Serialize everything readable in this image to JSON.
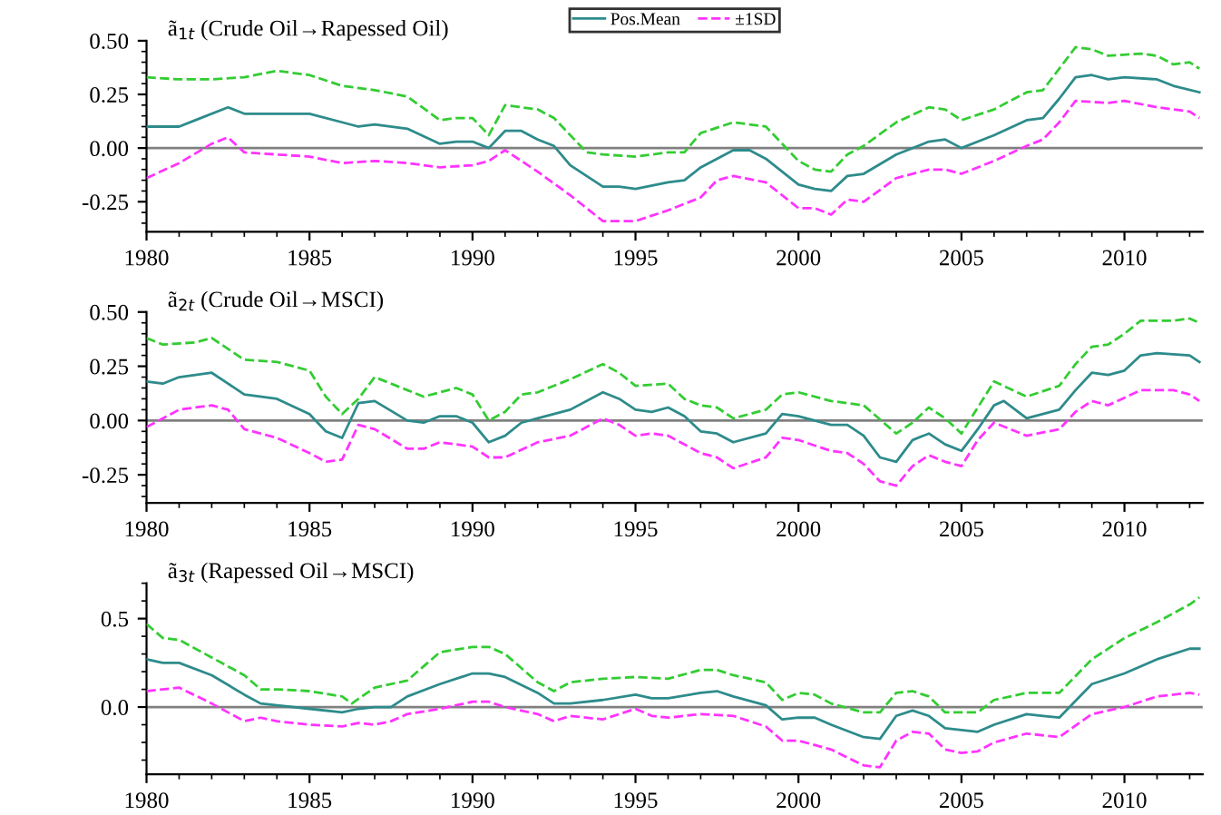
{
  "chart_data": [
    {
      "type": "line",
      "title": "ã$_{1t}$ (Crude Oil→Rapessed Oil)",
      "xlim": [
        1980,
        2012.4
      ],
      "xticks": [
        1980,
        1985,
        1990,
        1995,
        2000,
        2005,
        2010
      ],
      "ylim": [
        -0.39,
        0.5
      ],
      "yticks": [
        {
          "value": 0.5,
          "label": "0.50"
        },
        {
          "value": 0.25,
          "label": "0.25"
        },
        {
          "value": 0,
          "label": "0.00"
        },
        {
          "value": -0.25,
          "label": "-0.25"
        }
      ],
      "legend": "top",
      "grid": false,
      "ref_lines": [
        {
          "axis": "y",
          "value": 0,
          "color": "#808080",
          "line_style": "solid"
        }
      ],
      "series": [
        {
          "name": "Pos.Mean",
          "color": "#2e8b8b",
          "line_style": "solid",
          "x": [
            1980,
            1981,
            1981.5,
            1982.5,
            1983,
            1984,
            1985,
            1986,
            1986.5,
            1987,
            1988,
            1989,
            1989.5,
            1990,
            1990.5,
            1991,
            1991.5,
            1992,
            1992.5,
            1993,
            1994,
            1994.5,
            1995,
            1996,
            1996.5,
            1997,
            1998,
            1998.5,
            1999,
            2000,
            2000.5,
            2001,
            2001.5,
            2002,
            2003,
            2004,
            2004.5,
            2005,
            2005.5,
            2006,
            2007,
            2007.5,
            2008,
            2008.5,
            2009,
            2009.5,
            2010,
            2011,
            2011.5,
            2012.3
          ],
          "values": [
            0.1,
            0.1,
            0.13,
            0.19,
            0.16,
            0.16,
            0.16,
            0.12,
            0.1,
            0.11,
            0.09,
            0.02,
            0.03,
            0.03,
            0.0,
            0.08,
            0.08,
            0.04,
            0.01,
            -0.08,
            -0.18,
            -0.18,
            -0.19,
            -0.16,
            -0.15,
            -0.09,
            -0.01,
            -0.01,
            -0.05,
            -0.17,
            -0.19,
            -0.2,
            -0.13,
            -0.12,
            -0.03,
            0.03,
            0.04,
            0.0,
            0.03,
            0.06,
            0.13,
            0.14,
            0.23,
            0.33,
            0.34,
            0.32,
            0.33,
            0.32,
            0.29,
            0.26
          ]
        },
        {
          "name": "±1SD",
          "color": "#ff33ff",
          "line_style": "dashed",
          "x": [
            1980,
            1981,
            1982,
            1982.5,
            1983,
            1984,
            1985,
            1986,
            1987,
            1988,
            1989,
            1990,
            1990.5,
            1991,
            1992,
            1993,
            1994,
            1995,
            1996,
            1997,
            1997.5,
            1998,
            1999,
            2000,
            2000.5,
            2001,
            2001.5,
            2002,
            2003,
            2004,
            2004.5,
            2005,
            2006,
            2007,
            2007.5,
            2008,
            2008.5,
            2009.5,
            2010,
            2011,
            2012,
            2012.3
          ],
          "values": [
            -0.14,
            -0.07,
            0.02,
            0.05,
            -0.02,
            -0.03,
            -0.04,
            -0.07,
            -0.06,
            -0.07,
            -0.09,
            -0.08,
            -0.06,
            -0.01,
            -0.11,
            -0.22,
            -0.34,
            -0.34,
            -0.29,
            -0.23,
            -0.15,
            -0.13,
            -0.16,
            -0.28,
            -0.28,
            -0.31,
            -0.24,
            -0.25,
            -0.14,
            -0.1,
            -0.1,
            -0.12,
            -0.06,
            0.01,
            0.04,
            0.12,
            0.22,
            0.21,
            0.22,
            0.19,
            0.17,
            0.14
          ]
        },
        {
          "color": "#33cc33",
          "line_style": "dashed",
          "x": [
            1980,
            1981,
            1982,
            1983,
            1984,
            1985,
            1986,
            1987,
            1988,
            1989,
            1989.5,
            1990,
            1990.5,
            1991,
            1992,
            1992.5,
            1993.5,
            1994,
            1995,
            1996,
            1996.5,
            1997,
            1998,
            1999,
            2000,
            2000.5,
            2001,
            2001.5,
            2002,
            2003,
            2004,
            2004.5,
            2005,
            2006,
            2007,
            2007.5,
            2008,
            2008.5,
            2009,
            2009.5,
            2010.5,
            2011,
            2011.5,
            2012,
            2012.3
          ],
          "values": [
            0.33,
            0.32,
            0.32,
            0.33,
            0.36,
            0.34,
            0.29,
            0.27,
            0.24,
            0.13,
            0.14,
            0.14,
            0.06,
            0.2,
            0.18,
            0.14,
            -0.02,
            -0.03,
            -0.04,
            -0.02,
            -0.02,
            0.07,
            0.12,
            0.1,
            -0.06,
            -0.1,
            -0.11,
            -0.03,
            0.01,
            0.12,
            0.19,
            0.18,
            0.13,
            0.18,
            0.26,
            0.27,
            0.37,
            0.47,
            0.46,
            0.43,
            0.44,
            0.43,
            0.39,
            0.4,
            0.37
          ]
        }
      ]
    },
    {
      "type": "line",
      "title": "ã$_{2t}$ (Crude Oil→MSCI)",
      "xlim": [
        1980,
        2012.4
      ],
      "xticks": [
        1980,
        1985,
        1990,
        1995,
        2000,
        2005,
        2010
      ],
      "ylim": [
        -0.38,
        0.5
      ],
      "yticks": [
        {
          "value": 0.5,
          "label": "0.50"
        },
        {
          "value": 0.25,
          "label": "0.25"
        },
        {
          "value": 0,
          "label": "0.00"
        },
        {
          "value": -0.25,
          "label": "-0.25"
        }
      ],
      "grid": false,
      "ref_lines": [
        {
          "axis": "y",
          "value": 0,
          "color": "#808080",
          "line_style": "solid"
        }
      ],
      "series": [
        {
          "color": "#2e8b8b",
          "line_style": "solid",
          "x": [
            1980,
            1980.5,
            1981,
            1982,
            1982.5,
            1983,
            1984,
            1985,
            1985.5,
            1986,
            1986.5,
            1987,
            1988,
            1988.5,
            1989,
            1989.5,
            1990,
            1990.5,
            1991,
            1991.5,
            1992,
            1993,
            1994,
            1994.5,
            1995,
            1995.5,
            1996,
            1996.5,
            1997,
            1997.5,
            1998,
            1999,
            1999.5,
            2000,
            2001,
            2001.5,
            2002,
            2002.5,
            2003,
            2003.5,
            2004,
            2004.5,
            2005,
            2005.5,
            2006,
            2006.3,
            2007,
            2008,
            2008.5,
            2009,
            2009.5,
            2010,
            2010.5,
            2011,
            2012,
            2012.3
          ],
          "values": [
            0.18,
            0.17,
            0.2,
            0.22,
            0.17,
            0.12,
            0.1,
            0.03,
            -0.05,
            -0.08,
            0.08,
            0.09,
            0.0,
            -0.01,
            0.02,
            0.02,
            -0.01,
            -0.1,
            -0.07,
            -0.01,
            0.01,
            0.05,
            0.13,
            0.1,
            0.05,
            0.04,
            0.06,
            0.02,
            -0.05,
            -0.06,
            -0.1,
            -0.06,
            0.03,
            0.02,
            -0.02,
            -0.02,
            -0.07,
            -0.17,
            -0.19,
            -0.09,
            -0.06,
            -0.11,
            -0.14,
            -0.04,
            0.07,
            0.09,
            0.01,
            0.05,
            0.14,
            0.22,
            0.21,
            0.23,
            0.3,
            0.31,
            0.3,
            0.27
          ]
        },
        {
          "color": "#ff33ff",
          "line_style": "dashed",
          "x": [
            1980,
            1981,
            1982,
            1982.5,
            1983,
            1984,
            1985,
            1985.5,
            1986,
            1986.5,
            1987,
            1988,
            1988.5,
            1989,
            1990,
            1990.5,
            1991,
            1992,
            1993,
            1994,
            1994.5,
            1995,
            1995.5,
            1996,
            1997,
            1997.5,
            1998,
            1999,
            1999.5,
            2000,
            2001,
            2001.5,
            2002,
            2002.5,
            2003,
            2003.5,
            2004,
            2004.5,
            2005,
            2005.5,
            2006,
            2007,
            2008,
            2008.5,
            2009,
            2009.5,
            2010.5,
            2011.5,
            2012,
            2012.3
          ],
          "values": [
            -0.03,
            0.05,
            0.07,
            0.05,
            -0.04,
            -0.08,
            -0.15,
            -0.19,
            -0.18,
            -0.02,
            -0.04,
            -0.13,
            -0.13,
            -0.1,
            -0.12,
            -0.17,
            -0.17,
            -0.1,
            -0.07,
            0.01,
            -0.02,
            -0.07,
            -0.06,
            -0.07,
            -0.15,
            -0.17,
            -0.22,
            -0.17,
            -0.08,
            -0.09,
            -0.14,
            -0.15,
            -0.2,
            -0.28,
            -0.3,
            -0.21,
            -0.16,
            -0.19,
            -0.21,
            -0.09,
            -0.01,
            -0.07,
            -0.04,
            0.04,
            0.09,
            0.07,
            0.14,
            0.14,
            0.12,
            0.09
          ]
        },
        {
          "color": "#33cc33",
          "line_style": "dashed",
          "x": [
            1980,
            1980.5,
            1981.5,
            1982,
            1983,
            1984,
            1985,
            1985.5,
            1986,
            1986.5,
            1987,
            1988,
            1988.5,
            1989,
            1989.5,
            1990,
            1990.5,
            1991,
            1991.5,
            1992,
            1993,
            1994,
            1994.5,
            1995,
            1996,
            1996.5,
            1997,
            1997.5,
            1998,
            1999,
            1999.5,
            2000,
            2001,
            2002,
            2003,
            2003.5,
            2004,
            2004.5,
            2005,
            2005.5,
            2006,
            2007,
            2008,
            2008.5,
            2009,
            2009.5,
            2010,
            2010.5,
            2011.5,
            2012,
            2012.3
          ],
          "values": [
            0.38,
            0.35,
            0.36,
            0.38,
            0.28,
            0.27,
            0.23,
            0.11,
            0.03,
            0.1,
            0.2,
            0.14,
            0.11,
            0.13,
            0.15,
            0.12,
            0.0,
            0.04,
            0.12,
            0.13,
            0.19,
            0.26,
            0.22,
            0.16,
            0.17,
            0.1,
            0.07,
            0.06,
            0.01,
            0.05,
            0.12,
            0.13,
            0.09,
            0.07,
            -0.06,
            -0.01,
            0.06,
            0.01,
            -0.06,
            0.06,
            0.18,
            0.11,
            0.16,
            0.26,
            0.34,
            0.35,
            0.4,
            0.46,
            0.46,
            0.47,
            0.45
          ]
        }
      ]
    },
    {
      "type": "line",
      "title": "ã$_{3t}$ (Rapessed Oil→MSCI)",
      "xlim": [
        1980,
        2012.4
      ],
      "xticks": [
        1980,
        1985,
        1990,
        1995,
        2000,
        2005,
        2010
      ],
      "ylim": [
        -0.38,
        0.7
      ],
      "yticks": [
        {
          "value": 0.5,
          "label": "0.5"
        },
        {
          "value": 0,
          "label": "0.0"
        }
      ],
      "grid": false,
      "ref_lines": [
        {
          "axis": "y",
          "value": 0,
          "color": "#808080",
          "line_style": "solid"
        }
      ],
      "series": [
        {
          "color": "#2e8b8b",
          "line_style": "solid",
          "x": [
            1980,
            1980.5,
            1981,
            1982,
            1983,
            1983.5,
            1984,
            1985,
            1986,
            1986.5,
            1987,
            1987.5,
            1988,
            1989,
            1990,
            1990.5,
            1991,
            1992,
            1992.5,
            1993,
            1994,
            1995,
            1995.5,
            1996,
            1997,
            1997.5,
            1998,
            1999,
            1999.5,
            2000,
            2000.5,
            2001,
            2002,
            2002.5,
            2003,
            2003.5,
            2004,
            2004.5,
            2005,
            2005.5,
            2006,
            2007,
            2007.5,
            2008,
            2009,
            2010,
            2011,
            2012,
            2012.3
          ],
          "values": [
            0.27,
            0.25,
            0.25,
            0.18,
            0.07,
            0.02,
            0.01,
            -0.01,
            -0.03,
            -0.01,
            0.0,
            0.0,
            0.06,
            0.13,
            0.19,
            0.19,
            0.17,
            0.08,
            0.02,
            0.02,
            0.04,
            0.07,
            0.05,
            0.05,
            0.08,
            0.09,
            0.06,
            0.01,
            -0.07,
            -0.06,
            -0.06,
            -0.1,
            -0.17,
            -0.18,
            -0.05,
            -0.02,
            -0.05,
            -0.12,
            -0.13,
            -0.14,
            -0.1,
            -0.04,
            -0.05,
            -0.06,
            0.13,
            0.19,
            0.27,
            0.33,
            0.33
          ]
        },
        {
          "color": "#ff33ff",
          "line_style": "dashed",
          "x": [
            1980,
            1981,
            1982,
            1983,
            1983.5,
            1984,
            1985,
            1986,
            1986.5,
            1987,
            1987.5,
            1988,
            1989,
            1990,
            1990.5,
            1991,
            1992,
            1992.5,
            1993,
            1994,
            1995,
            1995.5,
            1996,
            1997,
            1998,
            1999,
            1999.5,
            2000,
            2001,
            2002,
            2002.5,
            2003,
            2003.5,
            2004,
            2004.5,
            2005,
            2005.5,
            2006,
            2007,
            2008,
            2009,
            2010,
            2011,
            2012,
            2012.3
          ],
          "values": [
            0.09,
            0.11,
            0.02,
            -0.08,
            -0.06,
            -0.08,
            -0.1,
            -0.11,
            -0.09,
            -0.1,
            -0.08,
            -0.04,
            -0.01,
            0.03,
            0.03,
            0.0,
            -0.04,
            -0.08,
            -0.05,
            -0.07,
            -0.01,
            -0.05,
            -0.06,
            -0.04,
            -0.05,
            -0.11,
            -0.19,
            -0.19,
            -0.24,
            -0.33,
            -0.34,
            -0.19,
            -0.14,
            -0.15,
            -0.24,
            -0.26,
            -0.25,
            -0.2,
            -0.15,
            -0.17,
            -0.04,
            0.0,
            0.06,
            0.08,
            0.07
          ]
        },
        {
          "color": "#33cc33",
          "line_style": "dashed",
          "x": [
            1980,
            1980.5,
            1981,
            1982,
            1983,
            1983.5,
            1984,
            1985,
            1986,
            1986.3,
            1987,
            1988,
            1989,
            1990,
            1990.5,
            1991,
            1992,
            1992.5,
            1993,
            1994,
            1995,
            1996,
            1997,
            1997.5,
            1998,
            1999,
            1999.5,
            2000,
            2000.5,
            2001,
            2002,
            2002.5,
            2003,
            2003.5,
            2004,
            2004.5,
            2005.5,
            2006,
            2007,
            2008,
            2009,
            2010,
            2011,
            2012,
            2012.3
          ],
          "values": [
            0.47,
            0.39,
            0.38,
            0.28,
            0.18,
            0.1,
            0.1,
            0.09,
            0.06,
            0.02,
            0.11,
            0.15,
            0.31,
            0.34,
            0.34,
            0.3,
            0.14,
            0.09,
            0.14,
            0.16,
            0.17,
            0.16,
            0.21,
            0.21,
            0.18,
            0.14,
            0.04,
            0.08,
            0.07,
            0.02,
            -0.03,
            -0.03,
            0.08,
            0.09,
            0.06,
            -0.03,
            -0.03,
            0.04,
            0.08,
            0.08,
            0.27,
            0.39,
            0.48,
            0.58,
            0.62
          ]
        }
      ]
    }
  ]
}
